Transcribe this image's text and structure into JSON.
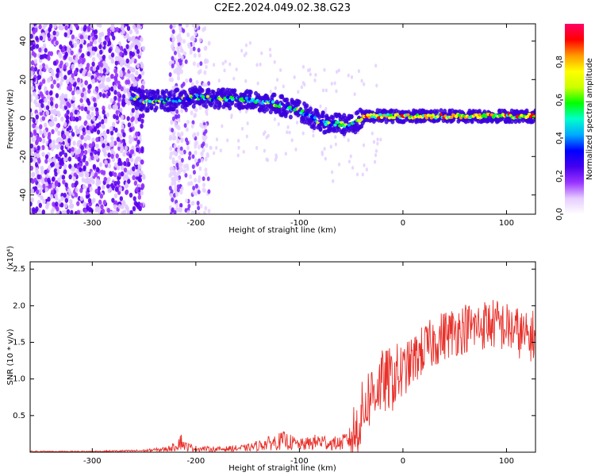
{
  "title": "C2E2.2024.049.02.38.G23",
  "chart_data": [
    {
      "type": "heatmap",
      "title": "C2E2.2024.049.02.38.G23",
      "xlabel": "Height of straight line (km)",
      "ylabel": "Frequency (Hz)",
      "xlim": [
        -360,
        128
      ],
      "ylim": [
        -50,
        49
      ],
      "xticks": [
        -300,
        -200,
        -100,
        0,
        100
      ],
      "yticks": [
        -40,
        -20,
        0,
        20,
        40
      ],
      "colorbar": {
        "label": "Normalized spectral amplitude",
        "range": [
          0,
          1
        ],
        "ticks": [
          "0.0",
          "0.2",
          "0.4",
          "0.6",
          "0.8"
        ],
        "tick_values": [
          0.0,
          0.2,
          0.4,
          0.6,
          0.8
        ],
        "colors": [
          "#ffffff",
          "#e6ccff",
          "#9933ff",
          "#4400ee",
          "#0000ff",
          "#00aaff",
          "#00ffcc",
          "#00ff00",
          "#ccff00",
          "#ffff00",
          "#ff9900",
          "#ff0000",
          "#ff0066"
        ]
      },
      "ridge": {
        "x": [
          -262,
          -250,
          -230,
          -210,
          -200,
          -180,
          -160,
          -140,
          -120,
          -100,
          -90,
          -80,
          -70,
          -60,
          -50,
          -40,
          -30,
          -20,
          0,
          30,
          60,
          100,
          125
        ],
        "y": [
          11,
          9,
          9,
          10,
          11,
          10,
          10,
          9,
          7,
          4,
          1,
          -2,
          -3,
          -3,
          -4,
          0,
          1,
          1,
          1,
          1,
          1,
          1,
          1
        ]
      },
      "grid": false
    },
    {
      "type": "line",
      "xlabel": "Height of straight line (km)",
      "ylabel": "SNR (10 * v/v)",
      "y_multiplier": "(x10⁴)",
      "xlim": [
        -360,
        128
      ],
      "ylim": [
        0,
        2.6
      ],
      "xticks": [
        -300,
        -200,
        -100,
        0,
        100
      ],
      "yticks": [
        0.5,
        1.0,
        1.5,
        2.0,
        2.5
      ],
      "ytick_labels": [
        "0.5",
        "1.0",
        "1.5",
        "2.0",
        "2.5"
      ],
      "series": [
        {
          "color": "#e8302a",
          "x": [
            -360,
            -300,
            -250,
            -230,
            -220,
            -215,
            -210,
            -200,
            -180,
            -150,
            -130,
            -115,
            -110,
            -100,
            -90,
            -80,
            -70,
            -60,
            -50,
            -45,
            -40,
            -35,
            -30,
            -25,
            -20,
            -10,
            0,
            10,
            20,
            30,
            40,
            50,
            60,
            70,
            80,
            90,
            100,
            110,
            115,
            120,
            125
          ],
          "y": [
            0.01,
            0.01,
            0.02,
            0.04,
            0.07,
            0.16,
            0.08,
            0.05,
            0.04,
            0.06,
            0.12,
            0.16,
            0.14,
            0.1,
            0.12,
            0.15,
            0.12,
            0.12,
            0.2,
            0.3,
            0.5,
            0.7,
            0.8,
            0.9,
            0.95,
            1.0,
            1.1,
            1.25,
            1.4,
            1.5,
            1.6,
            1.65,
            1.7,
            1.7,
            1.75,
            1.75,
            1.7,
            1.65,
            1.6,
            1.55,
            1.6
          ]
        }
      ],
      "grid": false
    }
  ]
}
